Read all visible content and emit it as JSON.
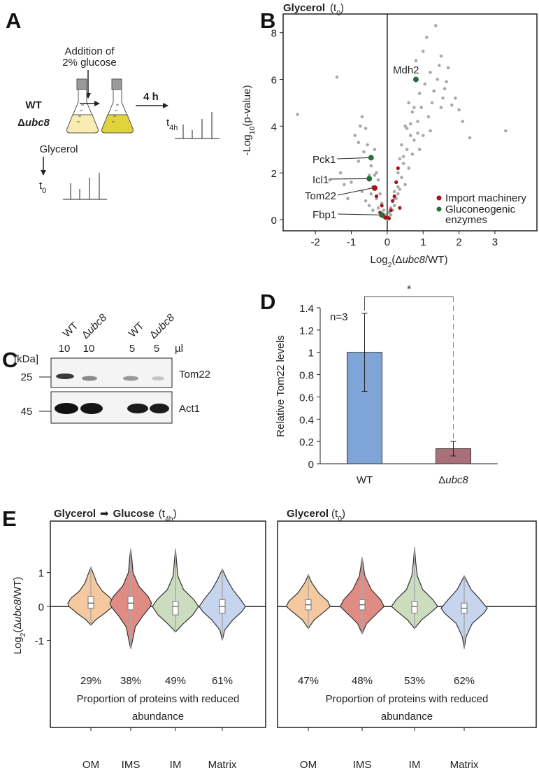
{
  "panel_labels": [
    "A",
    "B",
    "C",
    "D",
    "E"
  ],
  "schematic": {
    "addition": [
      "Addition of",
      "2% glucose"
    ],
    "strains": [
      "WT",
      "Δubc8"
    ],
    "duration": "4 h",
    "t4h": [
      "t",
      "4h"
    ],
    "medium": "Glycerol",
    "t0": [
      "t",
      "0"
    ]
  },
  "blot": {
    "lanes": [
      "WT",
      "Δubc8",
      "WT",
      "Δubc8"
    ],
    "volumes": [
      10,
      10,
      5,
      5
    ],
    "volume_unit": "µl",
    "mw_unit": "[kDa]",
    "markers": [
      25,
      45
    ],
    "proteins": [
      "Tom22",
      "Act1"
    ]
  },
  "chart_data": [
    {
      "type": "scatter",
      "title": [
        "Glycerol",
        "(t",
        "0",
        ")"
      ],
      "x_label": [
        "Log",
        "2",
        "(Δubc8/WT)"
      ],
      "y_label": [
        "-Log",
        "10",
        "(p-value)"
      ],
      "xlim": [
        -2.9,
        4.17
      ],
      "ylim": [
        -0.48,
        8.8
      ],
      "xticks": [
        -2,
        -1,
        0,
        1,
        2,
        3
      ],
      "yticks": [
        0,
        2,
        4,
        6,
        8
      ],
      "background": {
        "color": "#a9a9a9",
        "x": [
          -2.5,
          -1.4,
          -1.2,
          -1.1,
          -1.0,
          -0.9,
          -0.8,
          -0.75,
          -0.7,
          -0.65,
          -0.6,
          -0.55,
          -0.5,
          -0.5,
          -0.45,
          -0.4,
          -0.4,
          -0.35,
          -0.3,
          -0.3,
          -0.25,
          -0.25,
          -0.2,
          -0.2,
          -0.15,
          -0.15,
          -0.1,
          -0.1,
          -0.05,
          -0.05,
          0.0,
          0.05,
          0.05,
          0.1,
          0.1,
          0.15,
          0.15,
          0.2,
          0.2,
          0.25,
          0.25,
          0.3,
          0.3,
          0.35,
          0.35,
          0.4,
          0.4,
          0.45,
          0.5,
          0.5,
          0.55,
          0.6,
          0.6,
          0.65,
          0.7,
          0.7,
          0.75,
          0.8,
          0.85,
          0.9,
          0.9,
          0.95,
          1.0,
          1.0,
          1.05,
          1.1,
          1.15,
          1.2,
          1.2,
          1.3,
          1.35,
          1.4,
          1.5,
          1.5,
          1.6,
          1.7,
          1.8,
          1.9,
          2.0,
          2.1,
          2.3,
          3.3,
          -0.7,
          -0.6,
          -0.8,
          -0.35,
          0.45,
          0.55,
          0.65,
          0.75,
          0.85,
          1.25,
          1.45,
          1.55,
          1.65,
          -1.6,
          -1.3,
          0.3,
          0.2,
          -0.45
        ],
        "y": [
          4.5,
          6.1,
          1.5,
          0.9,
          1.6,
          3.6,
          2.5,
          4.0,
          1.2,
          2.9,
          0.8,
          3.2,
          1.9,
          0.6,
          2.3,
          1.4,
          0.4,
          3.0,
          0.9,
          2.0,
          0.5,
          1.7,
          0.3,
          1.1,
          0.2,
          0.7,
          0.1,
          0.4,
          0.05,
          0.2,
          0.02,
          0.1,
          0.3,
          0.5,
          0.2,
          0.8,
          0.4,
          1.2,
          0.6,
          1.6,
          0.9,
          2.0,
          1.1,
          2.6,
          1.3,
          3.2,
          1.8,
          2.4,
          4.0,
          1.5,
          3.0,
          5.0,
          2.2,
          3.6,
          4.6,
          2.8,
          3.4,
          6.8,
          4.2,
          5.4,
          3.0,
          4.8,
          7.2,
          3.6,
          5.8,
          7.8,
          4.4,
          6.3,
          3.8,
          5.5,
          8.3,
          6.0,
          7.0,
          4.8,
          5.6,
          6.5,
          4.9,
          5.2,
          4.7,
          4.2,
          3.5,
          3.8,
          4.4,
          3.9,
          3.3,
          1.9,
          2.7,
          3.9,
          4.1,
          4.8,
          3.7,
          5.0,
          6.6,
          5.2,
          5.9,
          1.7,
          2.0,
          1.4,
          0.9,
          1.1
        ]
      },
      "series": [
        {
          "name": "Import machinery",
          "color": "#a3161a",
          "label_color": "#d4462a",
          "x": [
            -0.35,
            -0.2,
            -0.15,
            -0.3,
            -0.05,
            0.05,
            0.1,
            0.2,
            0.3,
            0.25,
            0.15,
            -0.1,
            0.35,
            0.0
          ],
          "y": [
            1.35,
            0.3,
            0.6,
            1.0,
            0.08,
            0.05,
            0.4,
            1.0,
            2.2,
            1.6,
            0.8,
            0.15,
            0.5,
            0.1
          ],
          "point_labels": [
            "Tom22",
            null,
            null,
            null,
            null,
            null,
            null,
            null,
            null,
            null,
            null,
            null,
            null,
            null
          ]
        },
        {
          "name": "Gluconeogenic enzymes",
          "color": "#2c6b3b",
          "label_color": "#2c6b3b",
          "x": [
            0.8,
            -0.45,
            -0.5,
            -0.15
          ],
          "y": [
            6.0,
            2.65,
            1.75,
            0.2
          ],
          "point_labels": [
            "Mdh2",
            "Pck1",
            "Icl1",
            "Fbp1"
          ]
        }
      ],
      "legend": "lower right"
    },
    {
      "type": "bar",
      "y_label": "Relative Tom22 levels",
      "categories": [
        "WT",
        "Δubc8"
      ],
      "values": [
        1.0,
        0.135
      ],
      "errors": [
        0.35,
        0.065
      ],
      "colors": [
        "#7fa4d8",
        "#a9707a"
      ],
      "ylim": [
        0,
        1.4
      ],
      "yticks": [
        0,
        0.2,
        0.4,
        0.6,
        0.8,
        1,
        1.2,
        1.4
      ],
      "annotations": [
        "n=3",
        "*"
      ]
    },
    {
      "type": "violin",
      "title": [
        "Glycerol",
        "➡",
        "Glucose",
        "(t",
        "4h",
        ")"
      ],
      "y_label": [
        "Log",
        "2",
        "(Δubc8/WT)"
      ],
      "categories": [
        "OM",
        "IMS",
        "IM",
        "Matrix"
      ],
      "colors": [
        "#f5c9a0",
        "#e08c85",
        "#ccdcbf",
        "#c6d4ee"
      ],
      "ylim": [
        -3.57,
        2.52
      ],
      "yticks": [
        -1,
        0,
        1
      ],
      "violins": [
        {
          "min": -0.55,
          "q1": -0.05,
          "median": 0.1,
          "q3": 0.3,
          "max": 1.15,
          "density_at": [
            -0.55,
            -0.4,
            -0.2,
            0,
            0.1,
            0.25,
            0.45,
            0.7,
            0.95,
            1.15
          ],
          "density": [
            0,
            0.2,
            0.6,
            0.95,
            1.0,
            0.85,
            0.5,
            0.25,
            0.12,
            0
          ]
        },
        {
          "min": -1.25,
          "q1": -0.1,
          "median": 0.1,
          "q3": 0.3,
          "max": 1.7,
          "density_at": [
            -1.25,
            -1.0,
            -0.6,
            -0.3,
            0,
            0.1,
            0.3,
            0.6,
            1.0,
            1.4,
            1.7
          ],
          "density": [
            0,
            0.08,
            0.2,
            0.5,
            0.85,
            0.9,
            0.75,
            0.35,
            0.1,
            0.05,
            0
          ]
        },
        {
          "min": -0.75,
          "q1": -0.25,
          "median": 0.0,
          "q3": 0.15,
          "max": 1.7,
          "density_at": [
            -0.75,
            -0.5,
            -0.25,
            0,
            0.2,
            0.5,
            0.9,
            1.3,
            1.7
          ],
          "density": [
            0,
            0.35,
            0.75,
            1.0,
            0.8,
            0.35,
            0.1,
            0.05,
            0
          ]
        },
        {
          "min": -1.0,
          "q1": -0.2,
          "median": 0.0,
          "q3": 0.2,
          "max": 1.1,
          "density_at": [
            -1.0,
            -0.7,
            -0.4,
            -0.15,
            0,
            0.2,
            0.5,
            0.8,
            1.1
          ],
          "density": [
            0,
            0.1,
            0.45,
            0.85,
            1.0,
            0.8,
            0.45,
            0.2,
            0
          ]
        }
      ],
      "values": [
        29,
        38,
        49,
        61
      ],
      "value_labels": [
        "29%",
        "38%",
        "49%",
        "61%"
      ],
      "note": [
        "Proportion of proteins with reduced",
        "abundance"
      ]
    },
    {
      "type": "violin",
      "title": [
        "Glycerol",
        "(t",
        "0",
        ")"
      ],
      "categories": [
        "OM",
        "IMS",
        "IM",
        "Matrix"
      ],
      "colors": [
        "#f5c9a0",
        "#e08c85",
        "#ccdcbf",
        "#c6d4ee"
      ],
      "ylim": [
        -3.57,
        2.52
      ],
      "violins": [
        {
          "min": -0.65,
          "q1": -0.1,
          "median": 0.05,
          "q3": 0.2,
          "max": 0.93,
          "density_at": [
            -0.65,
            -0.4,
            -0.15,
            0,
            0.15,
            0.4,
            0.7,
            0.93
          ],
          "density": [
            0,
            0.25,
            0.7,
            0.95,
            0.85,
            0.45,
            0.15,
            0
          ]
        },
        {
          "min": -0.8,
          "q1": -0.1,
          "median": 0.05,
          "q3": 0.2,
          "max": 1.45,
          "density_at": [
            -0.8,
            -0.5,
            -0.2,
            0,
            0.2,
            0.5,
            0.9,
            1.2,
            1.45
          ],
          "density": [
            0,
            0.2,
            0.65,
            0.95,
            0.8,
            0.4,
            0.12,
            0.05,
            0
          ]
        },
        {
          "min": -0.65,
          "q1": -0.2,
          "median": 0.0,
          "q3": 0.15,
          "max": 1.75,
          "density_at": [
            -0.65,
            -0.4,
            -0.15,
            0,
            0.2,
            0.5,
            0.9,
            1.3,
            1.75
          ],
          "density": [
            0,
            0.3,
            0.75,
            1.0,
            0.8,
            0.35,
            0.12,
            0.05,
            0
          ]
        },
        {
          "min": -1.25,
          "q1": -0.2,
          "median": -0.05,
          "q3": 0.1,
          "max": 0.9,
          "density_at": [
            -1.25,
            -0.9,
            -0.5,
            -0.2,
            -0.05,
            0.2,
            0.5,
            0.9
          ],
          "density": [
            0,
            0.08,
            0.35,
            0.85,
            1.0,
            0.7,
            0.3,
            0
          ]
        }
      ],
      "values": [
        47,
        48,
        53,
        62
      ],
      "value_labels": [
        "47%",
        "48%",
        "53%",
        "62%"
      ],
      "note": [
        "Proportion of proteins with reduced",
        "abundance"
      ]
    }
  ]
}
